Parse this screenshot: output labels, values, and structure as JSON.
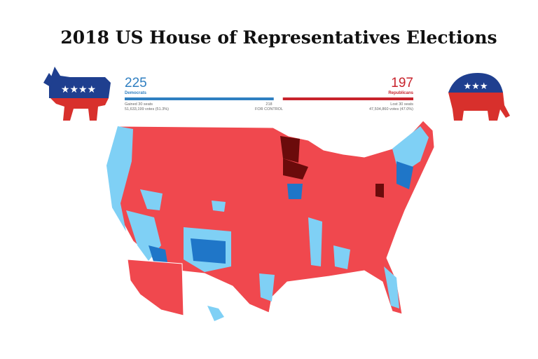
{
  "header": {
    "title": "2018 US House of Representatives Elections"
  },
  "tally": {
    "democrats": {
      "seats": 225,
      "label": "Democrats",
      "change": "Gained 30 seats",
      "votes": "51,633,199 votes (51.3%)",
      "color": "#2f7fc1"
    },
    "republicans": {
      "seats": 197,
      "label": "Republicans",
      "change": "Lost 30 seats",
      "votes": "47,504,860 votes (47.0%)",
      "color": "#c8232c"
    },
    "control": {
      "seats": 218,
      "label": "FOR CONTROL"
    }
  }
}
